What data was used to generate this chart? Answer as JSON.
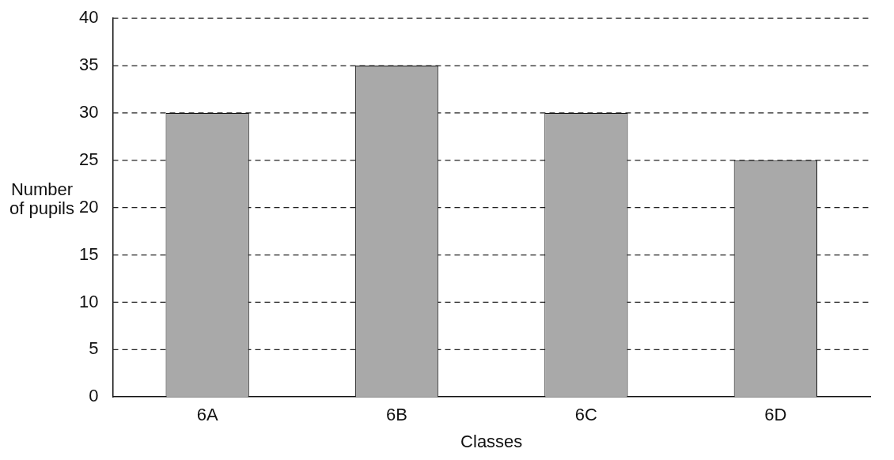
{
  "chart_data": {
    "type": "bar",
    "xlabel": "Classes",
    "ylabel": "Number of pupils",
    "categories": [
      "6A",
      "6B",
      "6C",
      "6D"
    ],
    "values": [
      30,
      35,
      30,
      25
    ],
    "color": "#a9a9a9",
    "ylim": [
      0,
      40
    ],
    "yticks": [
      0,
      5,
      10,
      15,
      20,
      25,
      30,
      35,
      40
    ],
    "grid": "y",
    "legend": false
  }
}
